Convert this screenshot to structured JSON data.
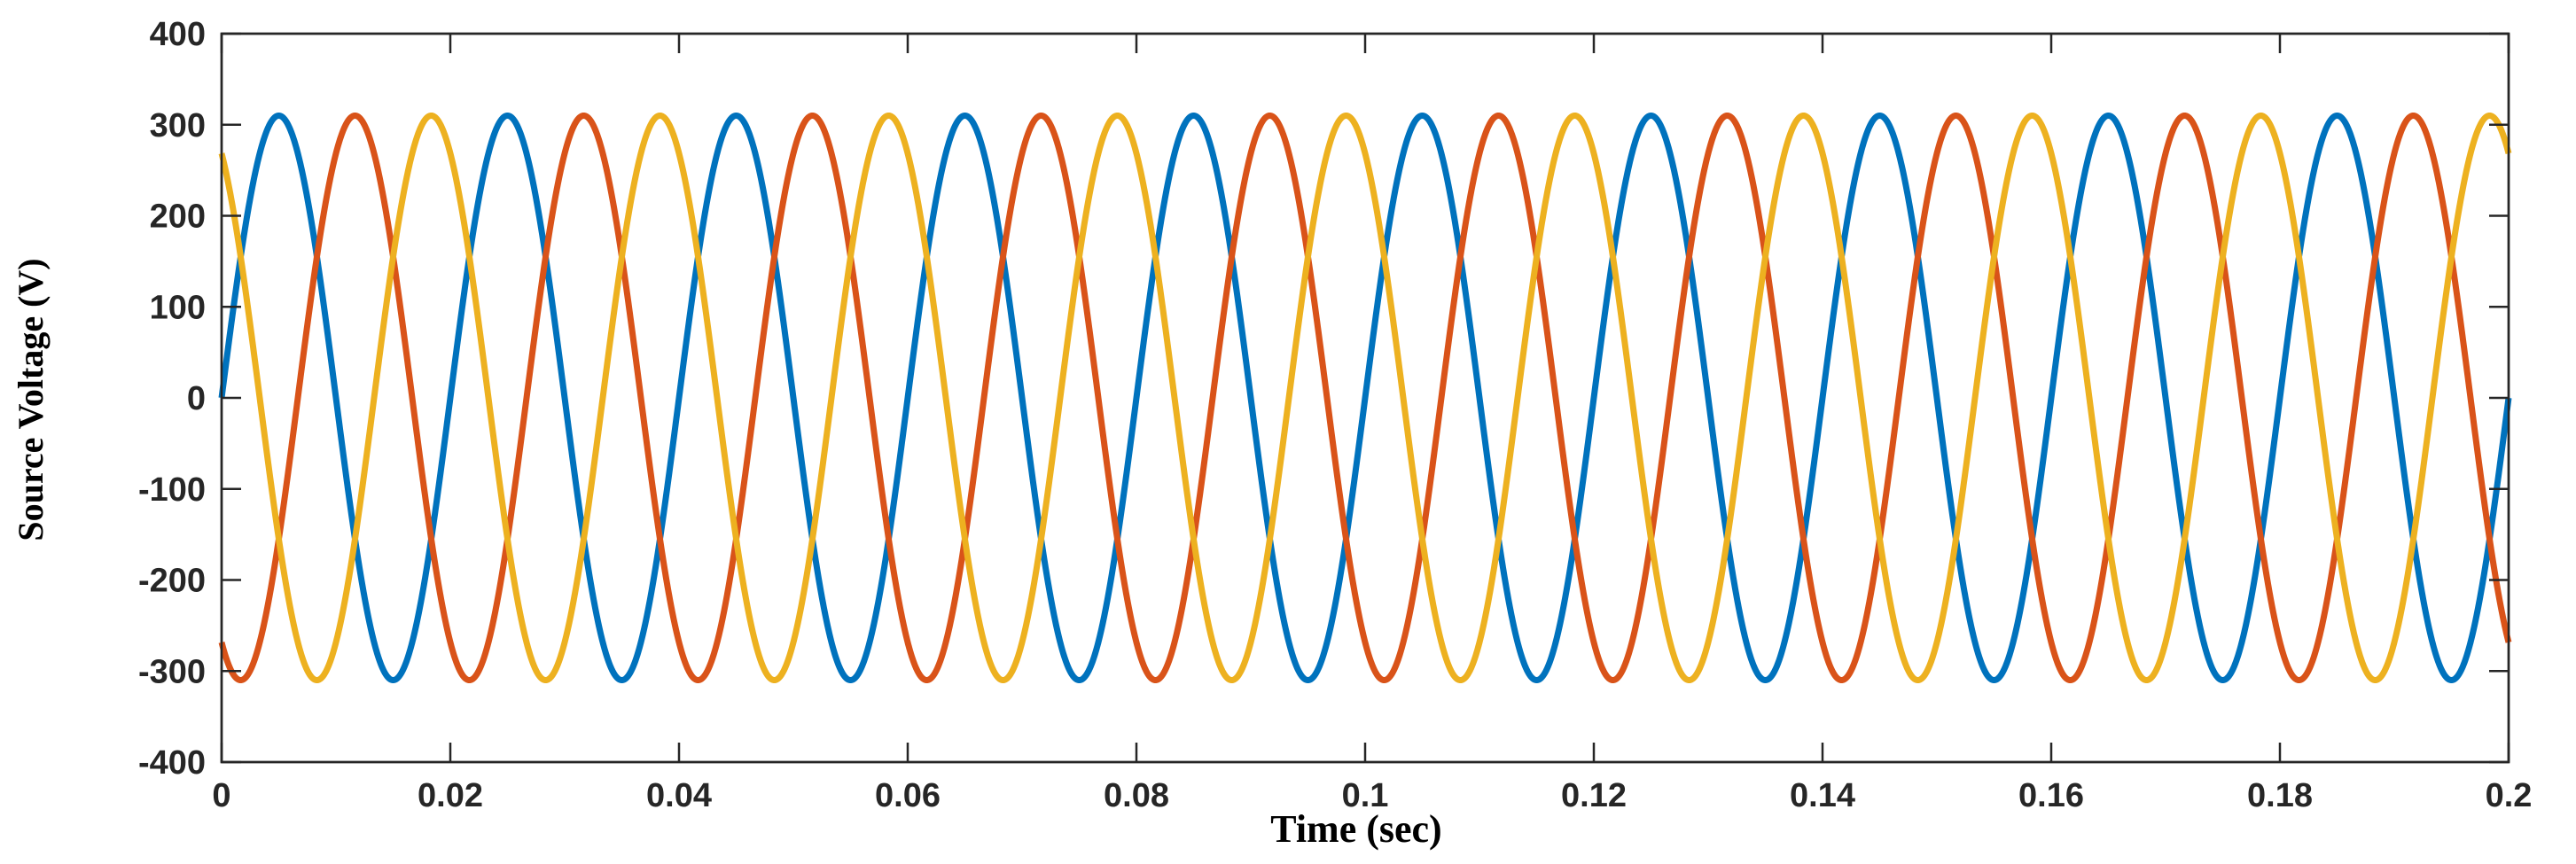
{
  "chart_data": {
    "type": "line",
    "title": "",
    "xlabel": "Time (sec)",
    "ylabel": "Source Voltage (V)",
    "xlim": [
      0,
      0.2
    ],
    "ylim": [
      -400,
      400
    ],
    "xticks": [
      0,
      0.02,
      0.04,
      0.06,
      0.08,
      0.1,
      0.12,
      0.14,
      0.16,
      0.18,
      0.2
    ],
    "xtick_labels": [
      "0",
      "0.02",
      "0.04",
      "0.06",
      "0.08",
      "0.1",
      "0.12",
      "0.14",
      "0.16",
      "0.18",
      "0.2"
    ],
    "yticks": [
      400,
      300,
      200,
      100,
      0,
      -100,
      -200,
      -300,
      -400
    ],
    "ytick_labels": [
      "400",
      "300",
      "200",
      "100",
      "0",
      "-100",
      "-200",
      "-300",
      "-400"
    ],
    "grid": false,
    "legend": "none",
    "frequency_hz": 50,
    "series": [
      {
        "amplitude": 310,
        "phase_deg": 0,
        "color": "#0072BD"
      },
      {
        "amplitude": 310,
        "phase_deg": -120,
        "color": "#D95319"
      },
      {
        "amplitude": 310,
        "phase_deg": 120,
        "color": "#EDB120"
      }
    ]
  }
}
